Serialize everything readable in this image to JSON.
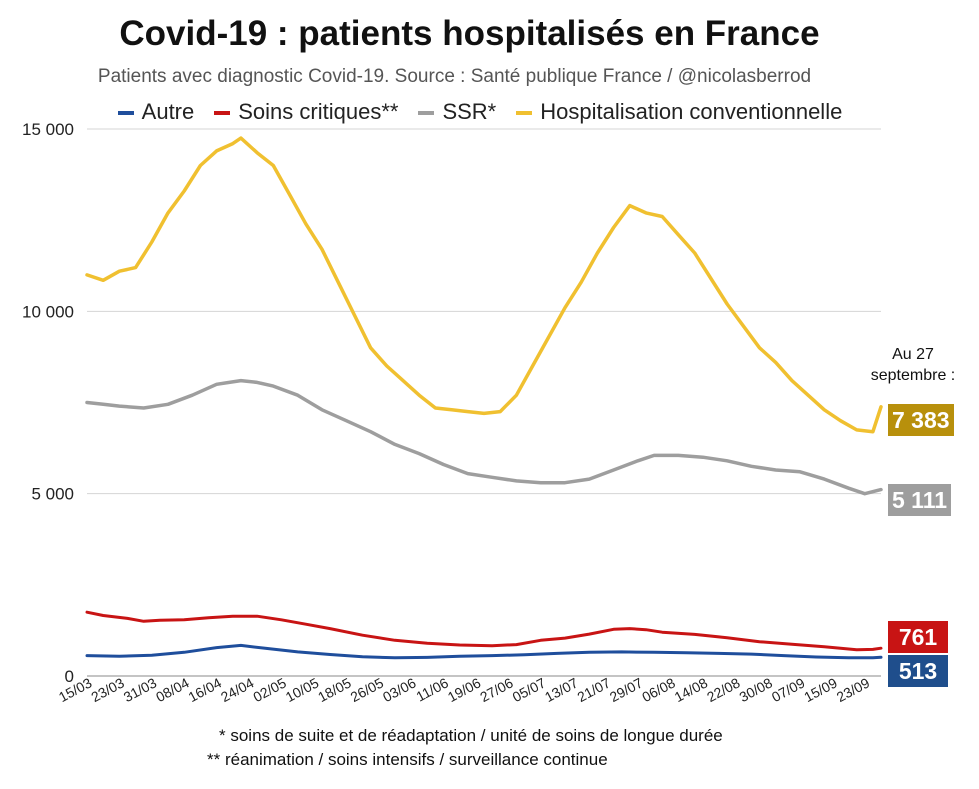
{
  "title": "Covid-19 : patients hospitalisés en France",
  "subtitle": "Patients avec diagnostic Covid-19. Source : Santé publique France / @nicolasberrod",
  "as_of": {
    "line1": "Au 27",
    "line2": "septembre :"
  },
  "footnotes": {
    "note1": "* soins de suite et de réadaptation / unité de soins de longue durée",
    "note2": "** réanimation / soins intensifs / surveillance continue"
  },
  "chart_data": {
    "type": "line",
    "title": "Covid-19 : patients hospitalisés en France",
    "ylim": [
      0,
      15000
    ],
    "yticks": [
      0,
      5000,
      10000,
      15000
    ],
    "ytick_labels": [
      "0",
      "5 000",
      "10 000",
      "15 000"
    ],
    "x_tick_labels": [
      "15/03",
      "23/03",
      "31/03",
      "08/04",
      "16/04",
      "24/04",
      "02/05",
      "10/05",
      "18/05",
      "26/05",
      "03/06",
      "11/06",
      "19/06",
      "27/06",
      "05/07",
      "13/07",
      "21/07",
      "29/07",
      "06/08",
      "14/08",
      "22/08",
      "30/08",
      "07/09",
      "15/09",
      "23/09"
    ],
    "x_days_total": 196,
    "legend_position": "top",
    "grid": true,
    "series": [
      {
        "name": "Autre",
        "color": "#1f4e9c",
        "label_color": "#1f4e8c",
        "last_value": 513,
        "last_label": "513",
        "points": [
          [
            0,
            560
          ],
          [
            8,
            540
          ],
          [
            16,
            570
          ],
          [
            24,
            650
          ],
          [
            32,
            780
          ],
          [
            38,
            840
          ],
          [
            44,
            760
          ],
          [
            52,
            660
          ],
          [
            60,
            590
          ],
          [
            68,
            530
          ],
          [
            76,
            500
          ],
          [
            84,
            510
          ],
          [
            92,
            540
          ],
          [
            100,
            560
          ],
          [
            108,
            580
          ],
          [
            116,
            620
          ],
          [
            124,
            650
          ],
          [
            132,
            660
          ],
          [
            140,
            650
          ],
          [
            148,
            640
          ],
          [
            156,
            620
          ],
          [
            164,
            600
          ],
          [
            172,
            560
          ],
          [
            180,
            520
          ],
          [
            188,
            500
          ],
          [
            194,
            500
          ],
          [
            196,
            513
          ]
        ]
      },
      {
        "name": "Soins critiques**",
        "color": "#c81414",
        "label_color": "#c81414",
        "last_value": 761,
        "last_label": "761",
        "points": [
          [
            0,
            1750
          ],
          [
            4,
            1660
          ],
          [
            10,
            1580
          ],
          [
            14,
            1500
          ],
          [
            18,
            1530
          ],
          [
            24,
            1540
          ],
          [
            30,
            1600
          ],
          [
            36,
            1640
          ],
          [
            42,
            1640
          ],
          [
            48,
            1540
          ],
          [
            54,
            1420
          ],
          [
            60,
            1300
          ],
          [
            68,
            1120
          ],
          [
            76,
            980
          ],
          [
            84,
            900
          ],
          [
            92,
            850
          ],
          [
            100,
            830
          ],
          [
            106,
            860
          ],
          [
            112,
            980
          ],
          [
            118,
            1040
          ],
          [
            124,
            1150
          ],
          [
            130,
            1280
          ],
          [
            134,
            1300
          ],
          [
            138,
            1270
          ],
          [
            142,
            1200
          ],
          [
            150,
            1140
          ],
          [
            158,
            1050
          ],
          [
            166,
            940
          ],
          [
            174,
            870
          ],
          [
            182,
            800
          ],
          [
            190,
            720
          ],
          [
            194,
            730
          ],
          [
            196,
            761
          ]
        ]
      },
      {
        "name": "SSR*",
        "color": "#9e9e9e",
        "label_color": "#9e9e9e",
        "last_value": 5111,
        "last_label": "5 111",
        "points": [
          [
            0,
            7500
          ],
          [
            4,
            7450
          ],
          [
            8,
            7400
          ],
          [
            14,
            7350
          ],
          [
            20,
            7450
          ],
          [
            26,
            7700
          ],
          [
            32,
            8000
          ],
          [
            38,
            8100
          ],
          [
            42,
            8050
          ],
          [
            46,
            7950
          ],
          [
            52,
            7700
          ],
          [
            58,
            7300
          ],
          [
            64,
            7000
          ],
          [
            70,
            6700
          ],
          [
            76,
            6350
          ],
          [
            82,
            6100
          ],
          [
            88,
            5800
          ],
          [
            94,
            5550
          ],
          [
            100,
            5450
          ],
          [
            106,
            5350
          ],
          [
            112,
            5300
          ],
          [
            118,
            5300
          ],
          [
            124,
            5400
          ],
          [
            130,
            5650
          ],
          [
            136,
            5900
          ],
          [
            140,
            6050
          ],
          [
            146,
            6050
          ],
          [
            152,
            6000
          ],
          [
            158,
            5900
          ],
          [
            164,
            5750
          ],
          [
            170,
            5650
          ],
          [
            176,
            5600
          ],
          [
            182,
            5400
          ],
          [
            188,
            5150
          ],
          [
            192,
            5000
          ],
          [
            196,
            5111
          ]
        ]
      },
      {
        "name": "Hospitalisation conventionnelle",
        "color": "#f0c030",
        "label_color": "#b8900c",
        "last_value": 7383,
        "last_label": "7 383",
        "points": [
          [
            0,
            11000
          ],
          [
            4,
            10850
          ],
          [
            8,
            11100
          ],
          [
            12,
            11200
          ],
          [
            16,
            11900
          ],
          [
            20,
            12700
          ],
          [
            24,
            13300
          ],
          [
            28,
            14000
          ],
          [
            32,
            14400
          ],
          [
            36,
            14600
          ],
          [
            38,
            14750
          ],
          [
            42,
            14350
          ],
          [
            46,
            14000
          ],
          [
            50,
            13200
          ],
          [
            54,
            12400
          ],
          [
            58,
            11700
          ],
          [
            62,
            10800
          ],
          [
            66,
            9900
          ],
          [
            70,
            9000
          ],
          [
            74,
            8500
          ],
          [
            78,
            8100
          ],
          [
            82,
            7700
          ],
          [
            86,
            7350
          ],
          [
            90,
            7300
          ],
          [
            94,
            7250
          ],
          [
            98,
            7200
          ],
          [
            102,
            7250
          ],
          [
            106,
            7700
          ],
          [
            110,
            8500
          ],
          [
            114,
            9300
          ],
          [
            118,
            10100
          ],
          [
            122,
            10800
          ],
          [
            126,
            11600
          ],
          [
            130,
            12300
          ],
          [
            134,
            12900
          ],
          [
            138,
            12700
          ],
          [
            142,
            12600
          ],
          [
            146,
            12100
          ],
          [
            150,
            11600
          ],
          [
            154,
            10900
          ],
          [
            158,
            10200
          ],
          [
            162,
            9600
          ],
          [
            166,
            9000
          ],
          [
            170,
            8600
          ],
          [
            174,
            8100
          ],
          [
            178,
            7700
          ],
          [
            182,
            7300
          ],
          [
            186,
            7000
          ],
          [
            190,
            6750
          ],
          [
            194,
            6700
          ],
          [
            196,
            7383
          ]
        ]
      }
    ]
  }
}
